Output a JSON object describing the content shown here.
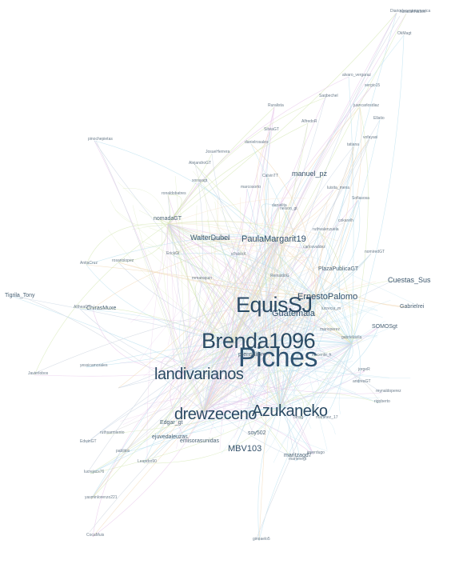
{
  "graph": {
    "edge_colors": [
      "#c9d6e4",
      "#e7c6ea",
      "#d5e8b6",
      "#b9e0ef",
      "#f2d9b8",
      "#dcdcdc"
    ],
    "labels": [
      {
        "text": "Piches",
        "level": 7
      },
      {
        "text": "EquisSJ",
        "level": 6
      },
      {
        "text": "Brenda1096",
        "level": 6
      },
      {
        "text": "landivarianos",
        "level": 5
      },
      {
        "text": "drewzeceno",
        "level": 5
      },
      {
        "text": "Azukaneko",
        "level": 5
      },
      {
        "text": "PaulaMargarit19",
        "level": 3
      },
      {
        "text": "ErnestoPalomo",
        "level": 3
      },
      {
        "text": "MBV103",
        "level": 3
      },
      {
        "text": "Guatemala",
        "level": 3
      },
      {
        "text": "Cuestas_Sus",
        "level": 2
      },
      {
        "text": "manuel_pz",
        "level": 2
      },
      {
        "text": "WalterDubel",
        "level": 2
      },
      {
        "text": "Tigrila_Tony",
        "level": 1
      },
      {
        "text": "Gabrielrei",
        "level": 1
      },
      {
        "text": "SOMOSgt",
        "level": 1
      },
      {
        "text": "PlazaPublicaGT",
        "level": 1
      },
      {
        "text": "ChirasMuxe",
        "level": 1
      },
      {
        "text": "maritzagd7",
        "level": 1
      },
      {
        "text": "prensalibre",
        "level": 1
      },
      {
        "text": "soy502",
        "level": 1
      },
      {
        "text": "emisorasunidas",
        "level": 1
      },
      {
        "text": "nomadaGT",
        "level": 1
      },
      {
        "text": "Edgar_gt",
        "level": 1
      },
      {
        "text": "ejuvedaleuzas",
        "level": 1
      },
      {
        "text": "Diariodecentroamerica",
        "level": 0
      },
      {
        "text": "OkMagt",
        "level": 0
      },
      {
        "text": "huracanNation",
        "level": 0
      },
      {
        "text": "pinochepietas",
        "level": 0
      },
      {
        "text": "juancarlosdiaz",
        "level": 0
      },
      {
        "text": "alvaro_vergaraz",
        "level": 0
      },
      {
        "text": "Ellatio",
        "level": 0
      },
      {
        "text": "sergio15",
        "level": 0
      },
      {
        "text": "Ruralista",
        "level": 0
      },
      {
        "text": "AlfredoR",
        "level": 0
      },
      {
        "text": "Saqbechel",
        "level": 0
      },
      {
        "text": "ronaldobatres",
        "level": 0
      },
      {
        "text": "CalvinTT",
        "level": 0
      },
      {
        "text": "JosueHerrera",
        "level": 0
      },
      {
        "text": "danielita",
        "level": 0
      },
      {
        "text": "marcosorto",
        "level": 0
      },
      {
        "text": "gtcolerico",
        "level": 0
      },
      {
        "text": "luisita_mena",
        "level": 0
      },
      {
        "text": "Sofiasosa",
        "level": 0
      },
      {
        "text": "carlosvaldez",
        "level": 0
      },
      {
        "text": "xPabloX",
        "level": 0
      },
      {
        "text": "nelson_gt",
        "level": 0
      },
      {
        "text": "ReinaldoG",
        "level": 0
      },
      {
        "text": "rosariolopez",
        "level": 0
      },
      {
        "text": "AnitaCruz",
        "level": 0
      },
      {
        "text": "ErickGt",
        "level": 0
      },
      {
        "text": "AltheaGT",
        "level": 0
      },
      {
        "text": "vofayasi",
        "level": 0
      },
      {
        "text": "tatiana",
        "level": 0
      },
      {
        "text": "Javierlobos",
        "level": 0
      },
      {
        "text": "marioperez",
        "level": 0
      },
      {
        "text": "lucrecia_m",
        "level": 0
      },
      {
        "text": "jorgeR",
        "level": 0
      },
      {
        "text": "andreaGT",
        "level": 0
      },
      {
        "text": "yessicamorales",
        "level": 0
      },
      {
        "text": "ruthsarmiento",
        "level": 0
      },
      {
        "text": "EdwinGT",
        "level": 0
      },
      {
        "text": "pablitos",
        "level": 0
      },
      {
        "text": "Leandro90",
        "level": 0
      },
      {
        "text": "ginoaelo5",
        "level": 0
      },
      {
        "text": "gabrielavila",
        "level": 0
      },
      {
        "text": "inocente_h",
        "level": 0
      },
      {
        "text": "CocaMuis",
        "level": 0
      },
      {
        "text": "lucrejacs76",
        "level": 0
      },
      {
        "text": "yasminlorenzo221",
        "level": 0
      },
      {
        "text": "omsg",
        "level": 0
      },
      {
        "text": "reynaldoperez",
        "level": 0
      },
      {
        "text": "jpverdugo",
        "level": 0
      },
      {
        "text": "marlenegt",
        "level": 0
      },
      {
        "text": "cokarelh",
        "level": 0
      },
      {
        "text": "ruthvalenzuela",
        "level": 0
      },
      {
        "text": "nomiredGT",
        "level": 0
      },
      {
        "text": "sorayagt",
        "level": 0
      },
      {
        "text": "mmaroquin",
        "level": 0
      },
      {
        "text": "AlejandroGT",
        "level": 0
      },
      {
        "text": "danielrosales",
        "level": 0
      },
      {
        "text": "martinez_17",
        "level": 0
      },
      {
        "text": "rigoberto",
        "level": 0
      },
      {
        "text": "SilviaGT",
        "level": 0
      }
    ]
  }
}
